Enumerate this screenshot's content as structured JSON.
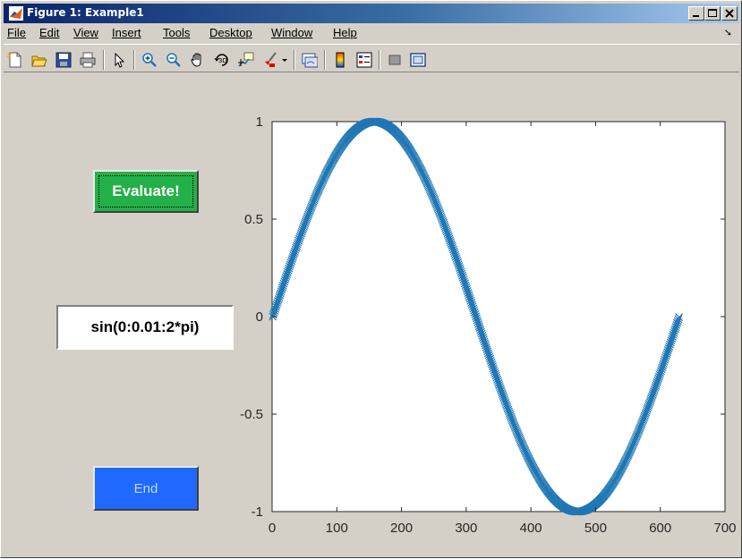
{
  "window": {
    "title": "Figure 1: Example1",
    "controls": [
      "minimize-icon",
      "maximize-icon",
      "close-icon"
    ]
  },
  "menu": {
    "items": [
      "File",
      "Edit",
      "View",
      "Insert",
      "Tools",
      "Desktop",
      "Window",
      "Help"
    ],
    "dock_arrow": "➘"
  },
  "toolbar": {
    "icons": [
      "new-figure-icon",
      "open-file-icon",
      "save-icon",
      "print-icon",
      "pointer-icon",
      "zoom-in-icon",
      "zoom-out-icon",
      "pan-icon",
      "rotate-3d-icon",
      "data-cursor-icon",
      "brush-icon",
      "link-plot-icon",
      "colorbar-icon",
      "legend-icon",
      "hide-plot-tools-icon",
      "show-plot-tools-icon"
    ]
  },
  "controls": {
    "evaluate_label": "Evaluate!",
    "expression_value": "sin(0:0.01:2*pi)",
    "end_label": "End"
  },
  "colors": {
    "evaluate_bg": "#24b048",
    "end_bg": "#1f69ff",
    "series": "#1f77b4"
  },
  "chart_data": {
    "type": "scatter",
    "marker": "x",
    "expression": "sin(0:0.01:2*pi)",
    "x_range": [
      1,
      629
    ],
    "x_step": 1,
    "y_function": "sin((x-1)*0.01)",
    "xlim": [
      0,
      700
    ],
    "ylim": [
      -1,
      1
    ],
    "xticks": [
      0,
      100,
      200,
      300,
      400,
      500,
      600,
      700
    ],
    "yticks": [
      -1,
      -0.5,
      0,
      0.5,
      1
    ],
    "grid": false,
    "title": "",
    "xlabel": "",
    "ylabel": ""
  }
}
